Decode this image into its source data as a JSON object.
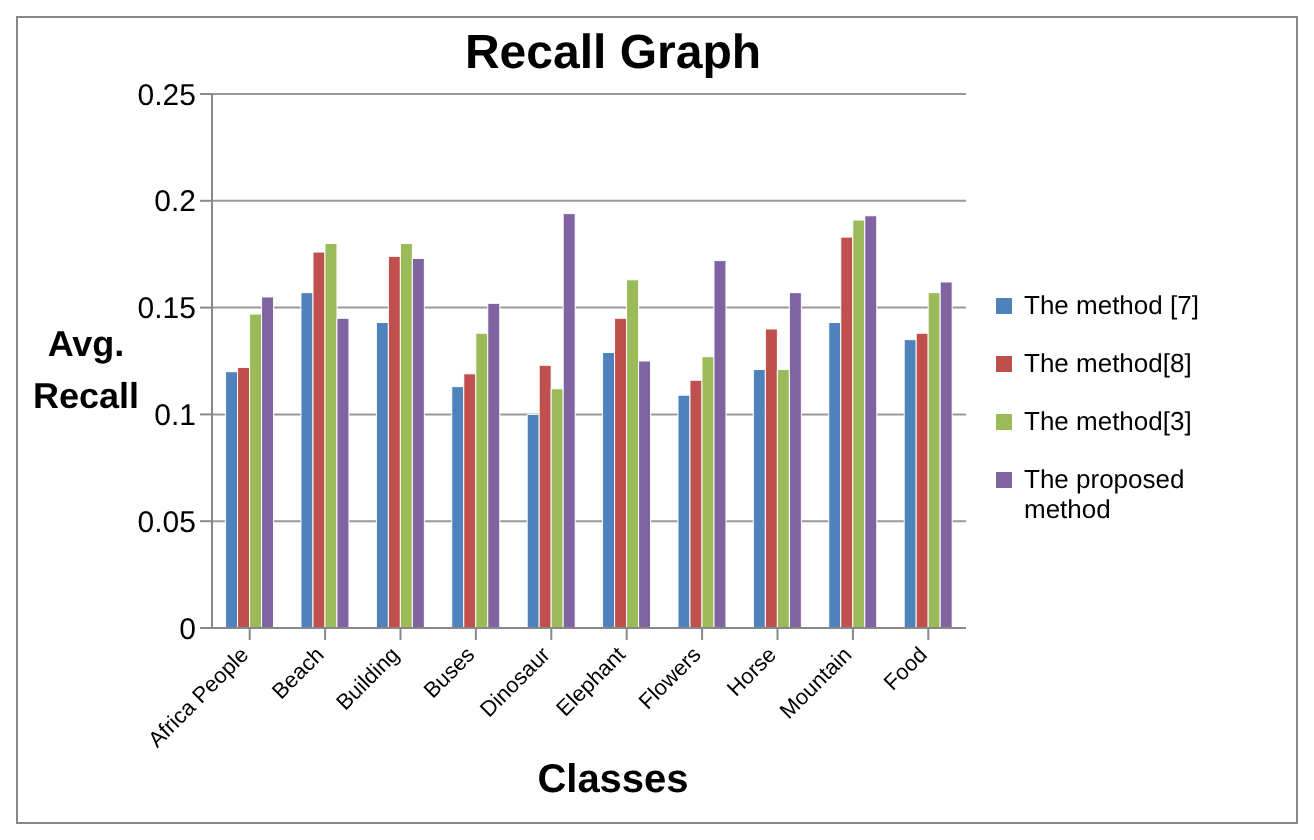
{
  "chart_data": {
    "type": "bar",
    "title": "Recall Graph",
    "xlabel": "Classes",
    "ylabel": "Avg. Recall",
    "categories": [
      "Africa People",
      "Beach",
      "Building",
      "Buses",
      "Dinosaur",
      "Elephant",
      "Flowers",
      "Horse",
      "Mountain",
      "Food"
    ],
    "series": [
      {
        "name": "The method [7]",
        "color": "#4f81bd",
        "values": [
          0.12,
          0.157,
          0.143,
          0.113,
          0.1,
          0.129,
          0.109,
          0.121,
          0.143,
          0.135
        ]
      },
      {
        "name": "The method[8]",
        "color": "#c0504d",
        "values": [
          0.122,
          0.176,
          0.174,
          0.119,
          0.123,
          0.145,
          0.116,
          0.14,
          0.183,
          0.138
        ]
      },
      {
        "name": "The method[3]",
        "color": "#9bbb59",
        "values": [
          0.147,
          0.18,
          0.18,
          0.138,
          0.112,
          0.163,
          0.127,
          0.121,
          0.191,
          0.157
        ]
      },
      {
        "name": "The proposed method",
        "color": "#8064a2",
        "values": [
          0.155,
          0.145,
          0.173,
          0.152,
          0.194,
          0.125,
          0.172,
          0.157,
          0.193,
          0.162
        ]
      }
    ],
    "ylim": [
      0,
      0.25
    ],
    "yticks": [
      0,
      0.05,
      0.1,
      0.15,
      0.2,
      0.25
    ],
    "grid": "y",
    "legend": "right"
  }
}
